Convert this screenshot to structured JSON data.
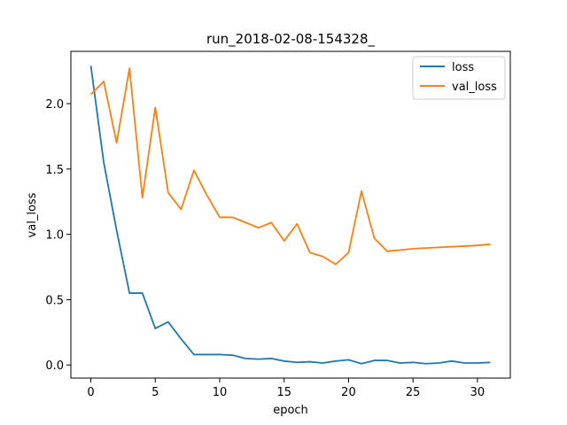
{
  "chart_data": {
    "type": "line",
    "title": "run_2018-02-08-154328_",
    "xlabel": "epoch",
    "ylabel": "val_loss",
    "xlim": [
      -1.55,
      32.55
    ],
    "ylim": [
      -0.1,
      2.4
    ],
    "xticks": [
      0,
      5,
      10,
      15,
      20,
      25,
      30
    ],
    "yticks": [
      0.0,
      0.5,
      1.0,
      1.5,
      2.0
    ],
    "xtick_labels": [
      "0",
      "5",
      "10",
      "15",
      "20",
      "25",
      "30"
    ],
    "ytick_labels": [
      "0.0",
      "0.5",
      "1.0",
      "1.5",
      "2.0"
    ],
    "grid": false,
    "legend_position": "top-right",
    "x": [
      0,
      1,
      2,
      3,
      4,
      5,
      6,
      7,
      8,
      9,
      10,
      11,
      12,
      13,
      14,
      15,
      16,
      17,
      18,
      19,
      20,
      21,
      22,
      23,
      24,
      25,
      26,
      27,
      28,
      29,
      30,
      31
    ],
    "series": [
      {
        "name": "loss",
        "color": "#1f77b4",
        "values": [
          2.29,
          1.55,
          1.03,
          0.55,
          0.55,
          0.28,
          0.33,
          0.2,
          0.08,
          0.08,
          0.08,
          0.075,
          0.05,
          0.045,
          0.05,
          0.03,
          0.02,
          0.025,
          0.015,
          0.03,
          0.04,
          0.01,
          0.035,
          0.035,
          0.015,
          0.02,
          0.01,
          0.015,
          0.03,
          0.015,
          0.015,
          0.02
        ]
      },
      {
        "name": "val_loss",
        "color": "#ff7f0e",
        "values": [
          2.07,
          2.17,
          1.7,
          2.27,
          1.28,
          1.97,
          1.32,
          1.19,
          1.49,
          1.3,
          1.13,
          1.13,
          1.09,
          1.05,
          1.09,
          0.95,
          1.08,
          0.86,
          0.83,
          0.77,
          0.86,
          1.33,
          0.97,
          0.87,
          0.88,
          0.89,
          0.895,
          0.9,
          0.905,
          0.91,
          0.915,
          0.925
        ]
      }
    ]
  }
}
